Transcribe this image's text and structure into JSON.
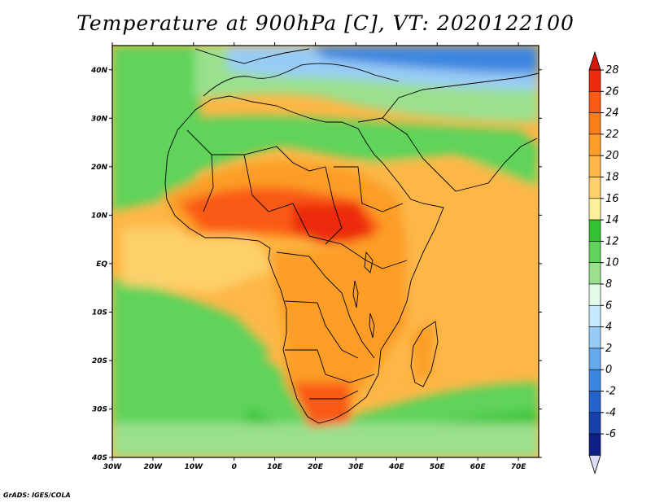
{
  "title": "Temperature at 900hPa [C], VT: 2020122100",
  "credit": "GrADS: IGES/COLA",
  "map": {
    "lon_range": [
      -30,
      75
    ],
    "lat_range": [
      -40,
      45
    ],
    "lon_ticks": [
      "30W",
      "20W",
      "10W",
      "0",
      "10E",
      "20E",
      "30E",
      "40E",
      "50E",
      "60E",
      "70E"
    ],
    "lat_ticks": [
      "40S",
      "30S",
      "20S",
      "10S",
      "EQ",
      "10N",
      "20N",
      "30N",
      "40N"
    ]
  },
  "colorbar": {
    "levels": [
      "28",
      "26",
      "24",
      "22",
      "20",
      "18",
      "16",
      "14",
      "12",
      "10",
      "8",
      "6",
      "4",
      "2",
      "0",
      "-2",
      "-4",
      "-6"
    ],
    "colors": [
      "#ed2b0e",
      "#fa5a14",
      "#fb7d18",
      "#fc9e27",
      "#fdb746",
      "#fdd06a",
      "#fbf19c",
      "#33c233",
      "#5fd35a",
      "#9ae08e",
      "#e3fbe8",
      "#c7e9ff",
      "#99ccf5",
      "#65aaec",
      "#3d86e0",
      "#2563cc",
      "#1740ab",
      "#0d1f86"
    ],
    "top_arrow_color": "#d41a0a",
    "bottom_arrow_color": "#dcdcf8"
  },
  "palette": {
    "ocean_warm": "#f7a833",
    "ocean_mild": "#fbd26b",
    "ocean_cool": "#33c233",
    "land_hot": "#ef3a10",
    "land_north": "#7fb6f0",
    "border": "#000000"
  }
}
